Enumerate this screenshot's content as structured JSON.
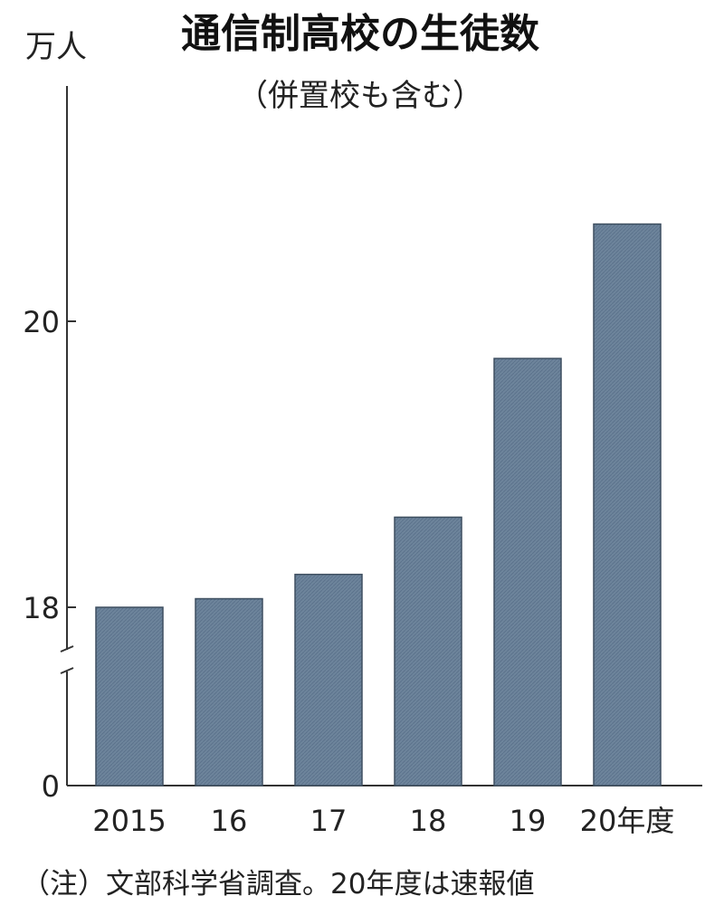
{
  "chart_data": {
    "type": "bar",
    "title": "通信制高校の生徒数",
    "subtitle": "（併置校も含む）",
    "ylabel": "万人",
    "xlabel": "",
    "categories": [
      "2015",
      "16",
      "17",
      "18",
      "19",
      "20年度"
    ],
    "values": [
      18.0,
      18.06,
      18.23,
      18.63,
      19.74,
      20.68
    ],
    "y_ticks": [
      {
        "value": 0,
        "label": "0"
      },
      {
        "value": 18,
        "label": "18"
      },
      {
        "value": 20,
        "label": "20"
      }
    ],
    "axis_break": {
      "from": 0,
      "to": 17.9
    },
    "ylim": [
      17.9,
      21.5
    ],
    "grid": false,
    "bar_color": "#6d849b",
    "note": "（注）文部科学省調査。20年度は速報値"
  }
}
